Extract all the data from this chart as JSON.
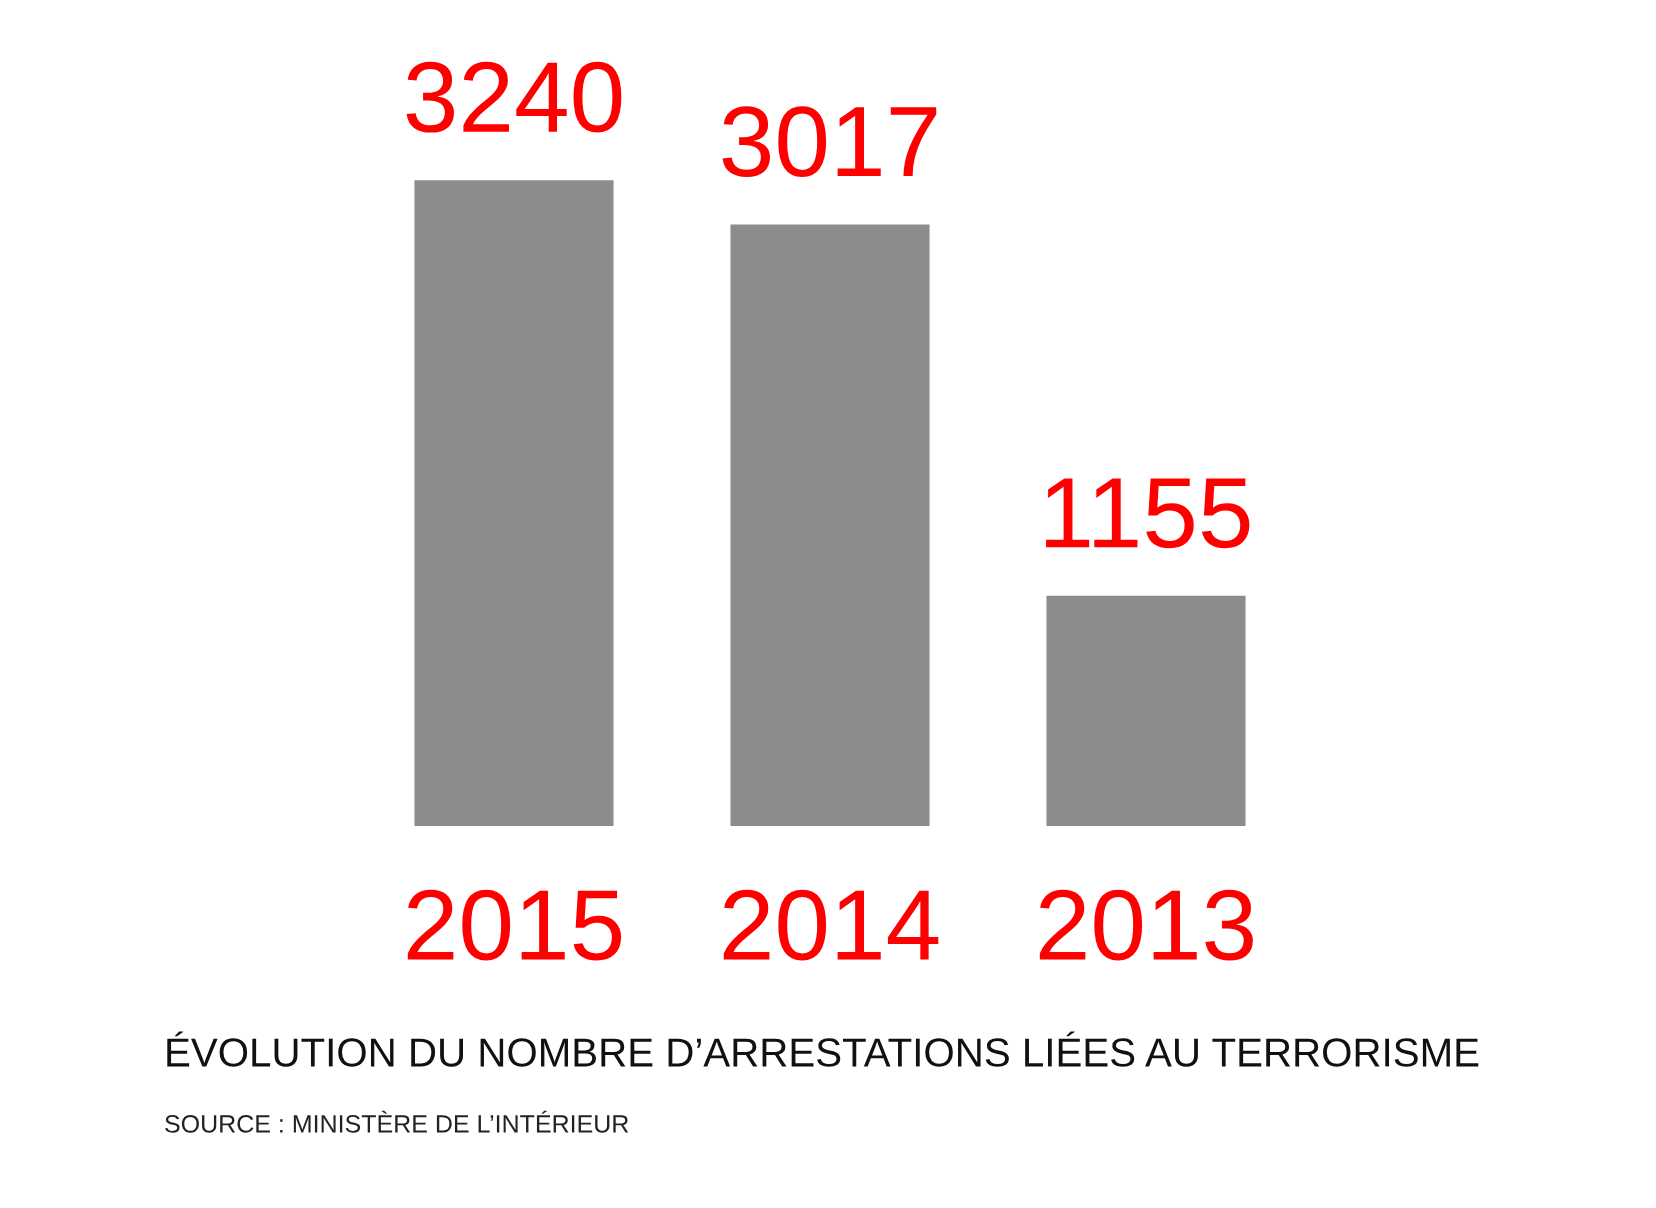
{
  "chart_data": {
    "type": "bar",
    "title": "ÉVOLUTION DU NOMBRE D’ARRESTATIONS LIÉES AU TERRORISME",
    "annotations": [
      "SOURCE : MINISTÈRE DE L’INTÉRIEUR"
    ],
    "categories": [
      "2015",
      "2014",
      "2013"
    ],
    "values": [
      3240,
      3017,
      1155
    ],
    "color": "#8c8c8c",
    "data_labels": true
  }
}
